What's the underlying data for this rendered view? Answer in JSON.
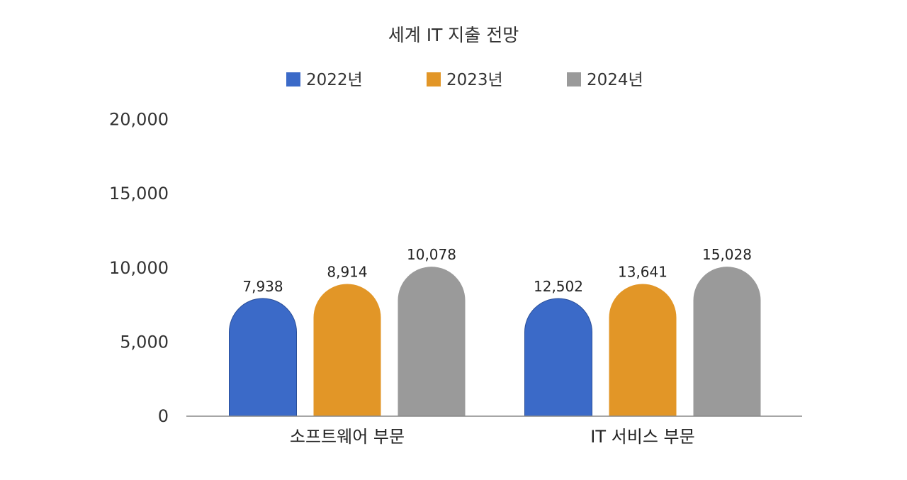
{
  "chart_data": {
    "type": "bar",
    "title": "세계 IT 지출 전망",
    "xlabel": "",
    "ylabel": "",
    "categories": [
      "소프트웨어 부문",
      "IT 서비스 부문"
    ],
    "series": [
      {
        "name": "2022년",
        "color": "#3B6AC8",
        "values": [
          7938,
          12502
        ],
        "labels": [
          "7,938",
          "12,502"
        ]
      },
      {
        "name": "2023년",
        "color": "#E29627",
        "values": [
          8914,
          13641
        ],
        "labels": [
          "8,914",
          "13,641"
        ]
      },
      {
        "name": "2024년",
        "color": "#9A9A9A",
        "values": [
          10078,
          15028
        ],
        "labels": [
          "10,078",
          "15,028"
        ]
      }
    ],
    "ylim": [
      0,
      20000
    ],
    "yticks": [
      0,
      5000,
      10000,
      15000,
      20000
    ],
    "ytick_labels": [
      "0",
      "5,000",
      "10,000",
      "15,000",
      "20,000"
    ],
    "legend_position": "top",
    "grid": false,
    "bar_shape": "rounded-top"
  }
}
